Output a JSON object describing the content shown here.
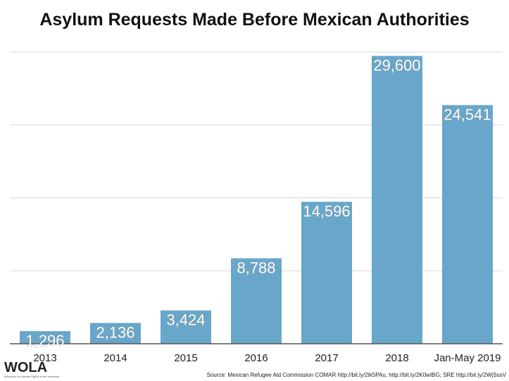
{
  "chart_data": {
    "type": "bar",
    "title": "Asylum Requests Made Before Mexican Authorities",
    "categories": [
      "2013",
      "2014",
      "2015",
      "2016",
      "2017",
      "2018",
      "Jan-May 2019"
    ],
    "values": [
      1296,
      2136,
      3424,
      8788,
      14596,
      29600,
      24541
    ],
    "value_labels": [
      "1,296",
      "2,136",
      "3,424",
      "8,788",
      "14,596",
      "29,600",
      "24,541"
    ],
    "xlabel": "",
    "ylabel": "",
    "ylim": [
      0,
      30000
    ],
    "y_gridlines": [
      7500,
      15000,
      22500,
      30000
    ],
    "grid": true,
    "bar_color": "#68a7ca",
    "gridline_color": "#d9d9d9",
    "axis_color": "#555555"
  },
  "branding": {
    "logo_text": "WOLA",
    "logo_tagline": "Advocacy for Human Rights in the Americas"
  },
  "source_text": "Source: Mexican Refugee Aid Commission COMAR http://bit.ly/2tk5PAu, http://bit.ly/2K0wIBG; SRE http://bit.ly/2WjSssV"
}
